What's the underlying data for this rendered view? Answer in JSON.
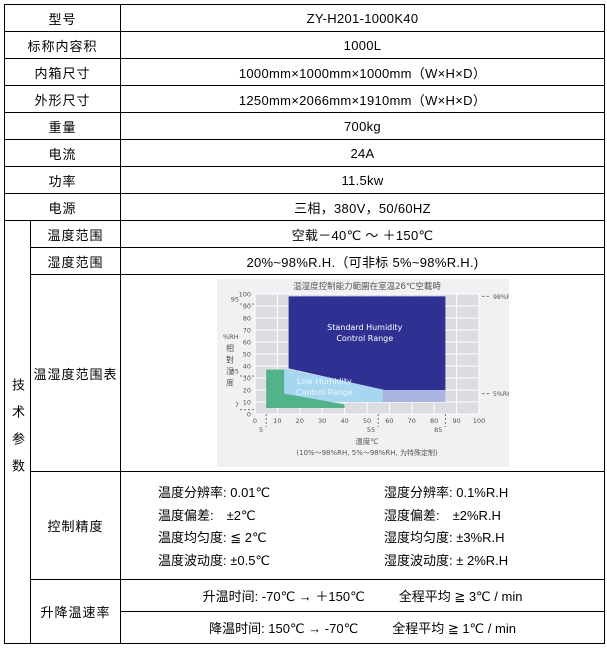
{
  "table": {
    "rows": [
      {
        "label": "型号",
        "value": "ZY-H201-1000K40"
      },
      {
        "label": "标称内容积",
        "value": "1000L"
      },
      {
        "label": "内箱尺寸",
        "value": "1000mm×1000mm×1000mm（W×H×D）"
      },
      {
        "label": "外形尺寸",
        "value": "1250mm×2066mm×1910mm（W×H×D）"
      },
      {
        "label": "重量",
        "value": "700kg"
      },
      {
        "label": "电流",
        "value": "24A"
      },
      {
        "label": "功率",
        "value": "11.5kw"
      },
      {
        "label": "电源",
        "value": "三相，380V，50/60HZ"
      }
    ],
    "tech": {
      "side_label": "技术参数",
      "temp_range": {
        "label": "温度范围",
        "value": "空载－40℃ ～ ＋150℃"
      },
      "hum_range": {
        "label": "湿度范围",
        "value": "20%~98%R.H.（可非标 5%~98%R.H.)"
      },
      "chart_label": "温湿度范围表",
      "accuracy": {
        "label": "控制精度",
        "lines": [
          {
            "left": "温度分辨率: 0.01℃",
            "right": "湿度分辨率: 0.1%R.H"
          },
          {
            "left": "温度偏差:　±2℃",
            "right": "湿度偏差:　±2%R.H"
          },
          {
            "left": "温度均匀度: ≦ 2℃",
            "right": "湿度均匀度: ±3%R.H"
          },
          {
            "left": "温度波动度: ±0.5℃",
            "right": "湿度波动度: ± 2%R.H"
          }
        ]
      },
      "ramp": {
        "label": "升降温速率",
        "lines": [
          {
            "left": "升温时间: -70℃ → ＋150℃",
            "right": "全程平均 ≧ 3℃ / min"
          },
          {
            "left": "降温时间: 150℃ → -70℃",
            "right": "全程平均 ≧ 1℃ / min"
          }
        ]
      }
    }
  },
  "chart_data": {
    "type": "area",
    "title": "温湿度控制能力範圍在室温26℃空載時",
    "xlabel": "温度℃",
    "ylabel_head": "%RH",
    "ylabel_chars": [
      "相",
      "對",
      "湿",
      "度"
    ],
    "footnote": "(10%～98%RH, 5%～98%RH, 为特殊定制)",
    "xlim": [
      0,
      100
    ],
    "ylim": [
      0,
      100
    ],
    "xticks": [
      0,
      10,
      20,
      30,
      40,
      50,
      60,
      70,
      80,
      90,
      100
    ],
    "yticks": [
      0,
      10,
      20,
      30,
      40,
      50,
      60,
      70,
      80,
      90,
      100
    ],
    "special_xticks": [
      5,
      55,
      85
    ],
    "special_yticks": [
      95,
      35,
      7
    ],
    "grid": true,
    "colors": {
      "chart_bg": "#f1f1f4",
      "plot_bg": "#dcdde2",
      "grid": "#ffffff",
      "text": "#555555",
      "standard": "#2e3192",
      "low_humidity": "#a7d6f1",
      "special_low": "#aab4e0",
      "special_option": "#52b28a"
    },
    "regions": [
      {
        "name": "low-humidity-control-range",
        "colorKey": "low_humidity",
        "points": [
          [
            8,
            37
          ],
          [
            15,
            37
          ],
          [
            57,
            21
          ],
          [
            57,
            10
          ],
          [
            8,
            10
          ]
        ]
      },
      {
        "name": "special-option-green-range",
        "colorKey": "special_option",
        "points": [
          [
            5,
            37
          ],
          [
            13,
            37
          ],
          [
            13,
            17
          ],
          [
            40,
            8
          ],
          [
            40,
            5
          ],
          [
            5,
            5
          ]
        ]
      },
      {
        "name": "special-low-humidity-strip",
        "colorKey": "special_low",
        "points": [
          [
            57,
            21
          ],
          [
            85,
            21
          ],
          [
            85,
            10
          ],
          [
            57,
            10
          ]
        ]
      },
      {
        "name": "standard-humidity-control-range",
        "colorKey": "standard",
        "points": [
          [
            15,
            98
          ],
          [
            85,
            98
          ],
          [
            85,
            20
          ],
          [
            58,
            20
          ],
          [
            15,
            38
          ]
        ]
      }
    ],
    "region_labels": [
      {
        "lines": [
          "Standard Humidity",
          "Control Range"
        ],
        "x": 49,
        "y": 70,
        "color": "#ffffff"
      },
      {
        "lines": [
          "Low Humidity",
          "Control Range"
        ],
        "x": 31,
        "y": 25,
        "color": "#e9f7ff"
      }
    ],
    "annotations_right": [
      {
        "text": "98%RH",
        "y": 98
      },
      {
        "text": "5%RH",
        "y": 17
      }
    ]
  }
}
